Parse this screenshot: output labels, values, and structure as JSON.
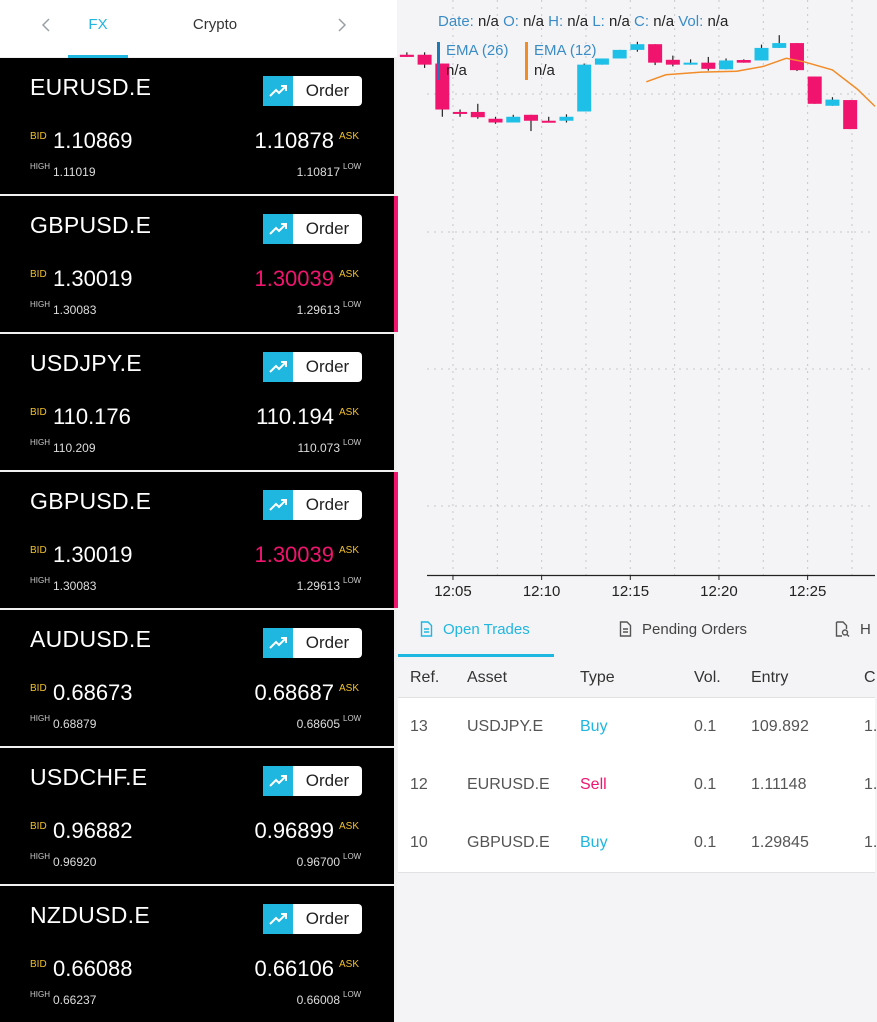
{
  "tabs": {
    "prev_icon": "chevron-left-icon",
    "next_icon": "chevron-right-icon",
    "fx": "FX",
    "crypto": "Crypto"
  },
  "order_label": "Order",
  "labels": {
    "bid": "BID",
    "ask": "ASK",
    "high": "HIGH",
    "low": "LOW"
  },
  "instruments": [
    {
      "symbol": "EURUSD.E",
      "bid": "1.10869",
      "ask": "1.10878",
      "high": "1.11019",
      "low": "1.10817",
      "ask_down": false,
      "alert": false
    },
    {
      "symbol": "GBPUSD.E",
      "bid": "1.30019",
      "ask": "1.30039",
      "high": "1.30083",
      "low": "1.29613",
      "ask_down": true,
      "alert": true
    },
    {
      "symbol": "USDJPY.E",
      "bid": "110.176",
      "ask": "110.194",
      "high": "110.209",
      "low": "110.073",
      "ask_down": false,
      "alert": false
    },
    {
      "symbol": "GBPUSD.E",
      "bid": "1.30019",
      "ask": "1.30039",
      "high": "1.30083",
      "low": "1.29613",
      "ask_down": true,
      "alert": true
    },
    {
      "symbol": "AUDUSD.E",
      "bid": "0.68673",
      "ask": "0.68687",
      "high": "0.68879",
      "low": "0.68605",
      "ask_down": false,
      "alert": false
    },
    {
      "symbol": "USDCHF.E",
      "bid": "0.96882",
      "ask": "0.96899",
      "high": "0.96920",
      "low": "0.96700",
      "ask_down": false,
      "alert": false
    },
    {
      "symbol": "NZDUSD.E",
      "bid": "0.66088",
      "ask": "0.66106",
      "high": "0.66237",
      "low": "0.66008",
      "ask_down": false,
      "alert": false
    }
  ],
  "chart": {
    "ohlc": {
      "date_label": "Date:",
      "o_label": "O:",
      "h_label": "H:",
      "l_label": "L:",
      "c_label": "C:",
      "vol_label": "Vol:",
      "date": "n/a",
      "o": "n/a",
      "h": "n/a",
      "l": "n/a",
      "c": "n/a",
      "vol": "n/a"
    },
    "ema26": {
      "name": "EMA (26)",
      "value": "n/a",
      "color": "#1f77b4"
    },
    "ema12": {
      "name": "EMA (12)",
      "value": "n/a",
      "color": "#f28c28"
    },
    "x_ticks": [
      "12:05",
      "12:10",
      "12:15",
      "12:20",
      "12:25"
    ]
  },
  "chart_data": {
    "type": "candlestick",
    "title": "",
    "xlabel": "",
    "ylabel": "",
    "y_tick_labels": "none",
    "up_color": "#1fc0e8",
    "down_color": "#f0146e",
    "ema_color": "#f28c28",
    "x_tick_labels": [
      "12:05",
      "12:10",
      "12:15",
      "12:20",
      "12:25"
    ],
    "x_range_minutes": [
      -3.1,
      23.8
    ],
    "y_range": [
      0,
      100
    ],
    "candles": [
      {
        "t": -2.6,
        "o": 93.3,
        "h": 94.4,
        "l": 92.3,
        "c": 92.3
      },
      {
        "t": -1.6,
        "o": 93.3,
        "h": 94.4,
        "l": 87.3,
        "c": 88.8
      },
      {
        "t": -0.6,
        "o": 89.3,
        "h": 89.3,
        "l": 65.1,
        "c": 68.4
      },
      {
        "t": 0.4,
        "o": 67.3,
        "h": 68.4,
        "l": 65.1,
        "c": 66.7
      },
      {
        "t": 1.4,
        "o": 67.3,
        "h": 71.0,
        "l": 64.2,
        "c": 64.9
      },
      {
        "t": 2.4,
        "o": 64.2,
        "h": 65.1,
        "l": 61.9,
        "c": 62.5
      },
      {
        "t": 3.4,
        "o": 62.5,
        "h": 66.0,
        "l": 62.5,
        "c": 65.1
      },
      {
        "t": 4.4,
        "o": 66.0,
        "h": 66.0,
        "l": 58.6,
        "c": 63.3
      },
      {
        "t": 5.4,
        "o": 63.3,
        "h": 65.1,
        "l": 62.5,
        "c": 63.1
      },
      {
        "t": 6.4,
        "o": 63.3,
        "h": 66.2,
        "l": 62.5,
        "c": 65.1
      },
      {
        "t": 7.4,
        "o": 67.5,
        "h": 89.3,
        "l": 67.5,
        "c": 88.8
      },
      {
        "t": 8.4,
        "o": 88.8,
        "h": 91.6,
        "l": 88.8,
        "c": 91.6
      },
      {
        "t": 9.4,
        "o": 91.6,
        "h": 95.5,
        "l": 91.6,
        "c": 95.5
      },
      {
        "t": 10.4,
        "o": 95.5,
        "h": 99.2,
        "l": 94.7,
        "c": 98.1
      },
      {
        "t": 11.4,
        "o": 98.1,
        "h": 98.1,
        "l": 88.6,
        "c": 89.7
      },
      {
        "t": 12.4,
        "o": 91.0,
        "h": 92.9,
        "l": 88.0,
        "c": 88.8
      },
      {
        "t": 13.4,
        "o": 89.7,
        "h": 91.2,
        "l": 88.8,
        "c": 89.7
      },
      {
        "t": 14.4,
        "o": 89.7,
        "h": 92.3,
        "l": 86.1,
        "c": 86.9
      },
      {
        "t": 15.4,
        "o": 86.7,
        "h": 91.6,
        "l": 86.7,
        "c": 90.7
      },
      {
        "t": 16.4,
        "o": 90.9,
        "h": 91.2,
        "l": 89.7,
        "c": 89.7
      },
      {
        "t": 17.4,
        "o": 90.7,
        "h": 97.9,
        "l": 90.7,
        "c": 96.4
      },
      {
        "t": 18.4,
        "o": 96.4,
        "h": 102.2,
        "l": 96.4,
        "c": 98.6
      },
      {
        "t": 19.4,
        "o": 98.6,
        "h": 98.6,
        "l": 85.9,
        "c": 86.3
      },
      {
        "t": 20.4,
        "o": 83.4,
        "h": 83.4,
        "l": 71.0,
        "c": 71.0
      },
      {
        "t": 21.4,
        "o": 70.1,
        "h": 74.0,
        "l": 70.1,
        "c": 72.9
      },
      {
        "t": 22.4,
        "o": 72.7,
        "h": 72.7,
        "l": 59.5,
        "c": 59.5
      }
    ],
    "ema_line": [
      {
        "t": 10.9,
        "y": 81.0
      },
      {
        "t": 12.0,
        "y": 84.2
      },
      {
        "t": 14.0,
        "y": 85.4
      },
      {
        "t": 16.0,
        "y": 85.8
      },
      {
        "t": 17.5,
        "y": 88.0
      },
      {
        "t": 18.8,
        "y": 91.7
      },
      {
        "t": 19.8,
        "y": 90.1
      },
      {
        "t": 21.4,
        "y": 86.4
      },
      {
        "t": 22.8,
        "y": 77.7
      },
      {
        "t": 23.8,
        "y": 69.8
      }
    ]
  },
  "trades": {
    "tabs": {
      "open": "Open Trades",
      "pending": "Pending Orders",
      "history": "H"
    },
    "headers": {
      "ref": "Ref.",
      "asset": "Asset",
      "type": "Type",
      "vol": "Vol.",
      "entry": "Entry",
      "current": "C"
    },
    "rows": [
      {
        "ref": "13",
        "asset": "USDJPY.E",
        "type": "Buy",
        "vol": "0.1",
        "entry": "109.892",
        "current": "1."
      },
      {
        "ref": "12",
        "asset": "EURUSD.E",
        "type": "Sell",
        "vol": "0.1",
        "entry": "1.11148",
        "current": "1."
      },
      {
        "ref": "10",
        "asset": "GBPUSD.E",
        "type": "Buy",
        "vol": "0.1",
        "entry": "1.29845",
        "current": "1."
      }
    ]
  }
}
